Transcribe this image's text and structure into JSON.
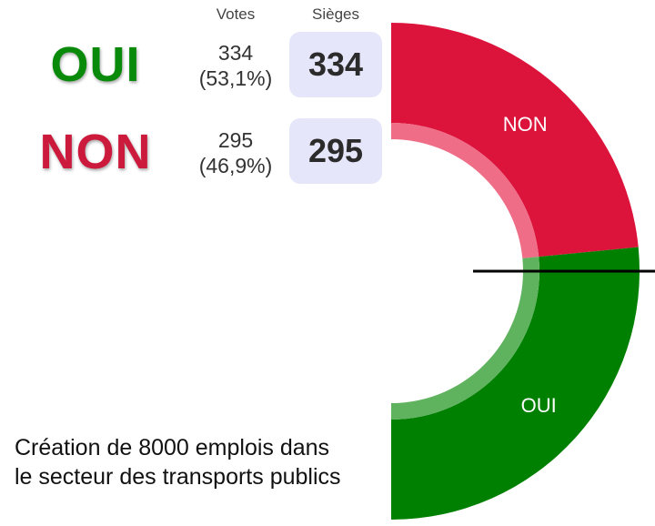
{
  "header": {
    "votes": "Votes",
    "seats": "Sièges"
  },
  "rows": [
    {
      "choice": "OUI",
      "votes": "334",
      "percent": "(53,1%)",
      "seats": "334",
      "color": "#0a8a0a"
    },
    {
      "choice": "NON",
      "votes": "295",
      "percent": "(46,9%)",
      "seats": "295",
      "color": "#cc1a3d"
    }
  ],
  "description": [
    "Création de 8000 emplois dans",
    "le secteur des transports publics"
  ],
  "chart_data": {
    "type": "pie",
    "style": "half-donut",
    "categories": [
      "NON",
      "OUI"
    ],
    "values": [
      295,
      334
    ],
    "colors": [
      "#dc143c",
      "#008000"
    ],
    "inner_colors": [
      "#ef6d86",
      "#5fb35f"
    ],
    "majority_line": true
  }
}
